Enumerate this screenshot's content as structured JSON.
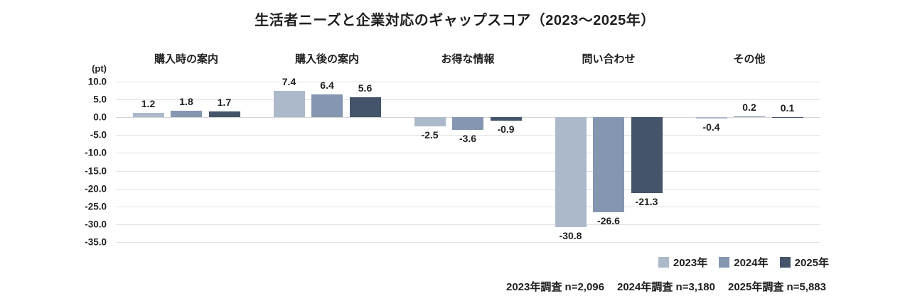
{
  "title": "生活者ニーズと企業対応のギャップスコア（2023～2025年）",
  "chart_data": {
    "type": "bar",
    "title": "生活者ニーズと企業対応のギャップスコア（2023～2025年）",
    "unit_label": "(pt)",
    "categories": [
      "購入時の案内",
      "購入後の案内",
      "お得な情報",
      "問い合わせ",
      "その他"
    ],
    "series": [
      {
        "name": "2023年",
        "color": "#ACB9CA",
        "values": [
          1.2,
          7.4,
          -2.5,
          -30.8,
          -0.4
        ]
      },
      {
        "name": "2024年",
        "color": "#8496B0",
        "values": [
          1.8,
          6.4,
          -3.6,
          -26.6,
          0.2
        ]
      },
      {
        "name": "2025年",
        "color": "#44546A",
        "values": [
          1.7,
          5.6,
          -0.9,
          -21.3,
          0.1
        ]
      }
    ],
    "ylim": [
      -35,
      10
    ],
    "ytick_step": 5,
    "yticks": [
      "10.0",
      "5.0",
      "0.0",
      "-5.0",
      "-10.0",
      "-15.0",
      "-20.0",
      "-25.0",
      "-30.0",
      "-35.0"
    ],
    "grid": true,
    "legend_position": "bottom-right",
    "value_labels": "outside-end"
  },
  "colors": {
    "series_2023": "#ACB9CA",
    "series_2024": "#8496B0",
    "series_2025": "#44546A",
    "gridline": "#e2e2e2",
    "text": "#1f1f1f"
  },
  "footer": {
    "notes": [
      "2023年調査 n=2,096",
      "2024年調査 n=3,180",
      "2025年調査 n=5,883"
    ]
  }
}
